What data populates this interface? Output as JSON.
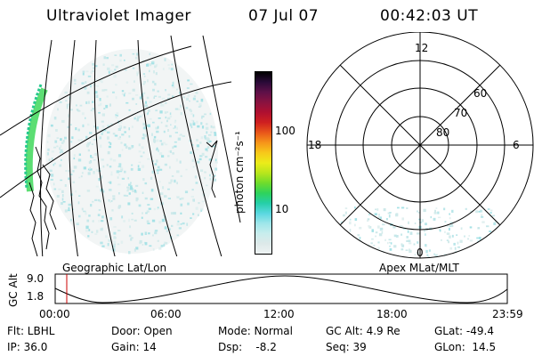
{
  "header": {
    "title": "Ultraviolet Imager",
    "date": "07 Jul 07",
    "time": "00:42:03 UT"
  },
  "colorbar": {
    "unit": "photon cm⁻²s⁻¹",
    "tick_labels": [
      "100",
      "10"
    ],
    "scale": "log",
    "colors": [
      "#eef3f3",
      "#dde9e9",
      "#c8eded",
      "#9ee6ea",
      "#5ad8e0",
      "#25cfa8",
      "#2ed35c",
      "#6fdc2c",
      "#b8e61c",
      "#ecec1a",
      "#f7c81a",
      "#f6951a",
      "#e8561a",
      "#cf2020",
      "#b01030",
      "#8a1240",
      "#5e1048",
      "#2a0a38",
      "#000000"
    ]
  },
  "left_map": {
    "label": "Geographic Lat/Lon"
  },
  "polar_map": {
    "label": "Apex MLat/MLT",
    "mlt_labels": [
      "12",
      "18",
      "6",
      "0"
    ],
    "lat_labels": [
      "60",
      "70",
      "80"
    ]
  },
  "altitude_plot": {
    "ylabel": "GC Alt",
    "ytick_labels": [
      "9.0",
      "1.8"
    ],
    "xtick_labels": [
      "00:00",
      "06:00",
      "12:00",
      "18:00",
      "23:59"
    ]
  },
  "info": {
    "filter": "Flt: LBHL",
    "ip": "IP: 36.0",
    "door": "Door: Open",
    "gain": "Gain: 14",
    "mode": "Mode: Normal",
    "dsp": "Dsp:    -8.2",
    "gc_alt": "GC Alt: 4.9 Re",
    "seq": "Seq: 39",
    "glat": "GLat: -49.4",
    "glon": "GLon:  14.5"
  }
}
